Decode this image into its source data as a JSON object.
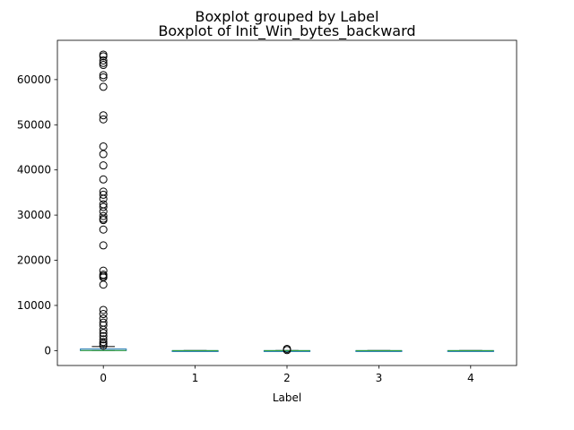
{
  "chart_data": {
    "type": "boxplot",
    "suptitle": "Boxplot grouped by Label",
    "title": "Boxplot of Init_Win_bytes_backward",
    "xlabel": "Label",
    "ylabel": "",
    "categories": [
      "0",
      "1",
      "2",
      "3",
      "4"
    ],
    "ylim": [
      -3300,
      68700
    ],
    "yticks": [
      0,
      10000,
      20000,
      30000,
      40000,
      50000,
      60000
    ],
    "ytick_labels": [
      "0",
      "10000",
      "20000",
      "30000",
      "40000",
      "50000",
      "60000"
    ],
    "grid": false,
    "colors": {
      "box": "#1f77b4",
      "median": "#2ca02c",
      "whisker": "#1f77b4",
      "flier": "#000000"
    },
    "boxes": [
      {
        "label": "0",
        "whislo": -1,
        "q1": 0,
        "med": 30,
        "q3": 350,
        "whishi": 880,
        "fliers": [
          65535,
          65160,
          64240,
          63680,
          63240,
          61000,
          60500,
          58400,
          52100,
          51200,
          45200,
          43500,
          41000,
          37900,
          35200,
          34500,
          33600,
          32400,
          31800,
          30800,
          29800,
          29200,
          28900,
          26800,
          23300,
          17700,
          16800,
          16500,
          16200,
          14600,
          9000,
          8100,
          7100,
          6200,
          5600,
          4600,
          3900,
          3200,
          2500,
          1900,
          1500,
          1100
        ]
      },
      {
        "label": "1",
        "whislo": -1,
        "q1": -1,
        "med": -1,
        "q3": -1,
        "whishi": -1,
        "fliers": []
      },
      {
        "label": "2",
        "whislo": -1,
        "q1": -1,
        "med": -1,
        "q3": -1,
        "whishi": -1,
        "fliers": [
          380,
          110
        ]
      },
      {
        "label": "3",
        "whislo": -1,
        "q1": -1,
        "med": -1,
        "q3": -1,
        "whishi": -1,
        "fliers": []
      },
      {
        "label": "4",
        "whislo": -1,
        "q1": -1,
        "med": -1,
        "q3": -1,
        "whishi": -1,
        "fliers": []
      }
    ]
  }
}
